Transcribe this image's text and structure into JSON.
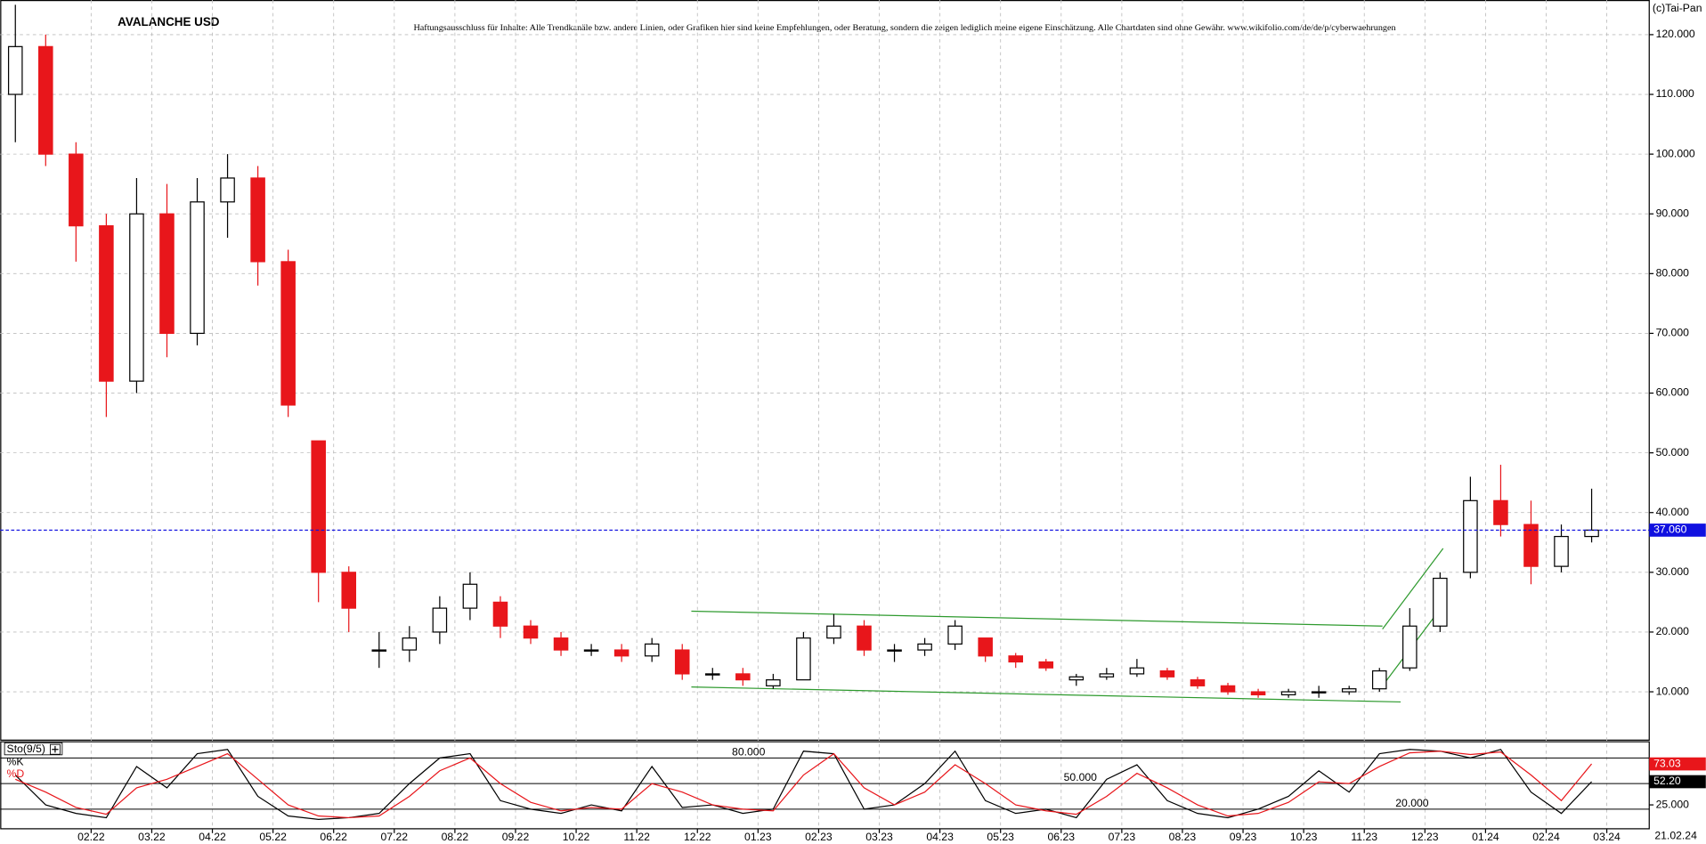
{
  "chart_data": [
    {
      "type": "candlestick",
      "title": "AVALANCHE USD",
      "subtitle": "Haftungsausschluss für Inhalte: Alle Trendkanäle bzw. andere Linien, oder Grafiken hier sind keine Empfehlungen, oder Beratung, sondern die zeigen lediglich meine eigene Einschätzung. Alle Chartdaten sind ohne Gewähr.  www.wikifolio.com/de/de/p/cyberwaehrungen",
      "annotation": "(c)Tai-Pan",
      "date_label": "21.02.24",
      "x": [
        -0.25,
        0.25,
        0.75,
        1.25,
        1.75,
        2.25,
        2.75,
        3.25,
        3.75,
        4.25,
        4.75,
        5.25,
        5.75,
        6.25,
        6.75,
        7.25,
        7.75,
        8.25,
        8.75,
        9.25,
        9.75,
        10.25,
        10.75,
        11.25,
        11.75,
        12.25,
        12.75,
        13.25,
        13.75,
        14.25,
        14.75,
        15.25,
        15.75,
        16.25,
        16.75,
        17.25,
        17.75,
        18.25,
        18.75,
        19.25,
        19.75,
        20.25,
        20.75,
        21.25,
        21.75,
        22.25,
        22.75,
        23.25,
        23.75,
        24.25,
        24.75,
        25.25,
        25.75
      ],
      "open": [
        110,
        118,
        100,
        88,
        62,
        90,
        70,
        92,
        96,
        82,
        52,
        30,
        17,
        17,
        20,
        24,
        25,
        21,
        19,
        17,
        17,
        16,
        17,
        13,
        13,
        11,
        12,
        19,
        21,
        17,
        17,
        18,
        19,
        16,
        15,
        12,
        12.5,
        13,
        13.5,
        12,
        11,
        10,
        9.5,
        10,
        10,
        10.5,
        14,
        21,
        30,
        42,
        38,
        31,
        36
      ],
      "high": [
        125,
        120,
        102,
        90,
        96,
        95,
        96,
        100,
        98,
        84,
        52,
        31,
        20,
        21,
        26,
        30,
        26,
        22,
        20,
        18,
        18,
        19,
        18,
        14,
        14,
        13,
        20,
        23,
        22,
        18,
        19,
        22,
        19,
        16.5,
        15.5,
        13,
        14,
        15.5,
        14,
        12.5,
        11.5,
        10.5,
        10.5,
        11,
        11,
        14,
        24,
        30,
        46,
        48,
        42,
        38,
        44
      ],
      "low": [
        102,
        98,
        82,
        56,
        60,
        66,
        68,
        86,
        78,
        56,
        25,
        20,
        14,
        15,
        18,
        22,
        19,
        18,
        16,
        16,
        15,
        15,
        12,
        12,
        11,
        10.5,
        12,
        18,
        16,
        15,
        16,
        17,
        15,
        14,
        13.5,
        11,
        12,
        12.5,
        12,
        10.5,
        9.5,
        9,
        9,
        9,
        9.5,
        10,
        13.5,
        20,
        29,
        36,
        28,
        30,
        35
      ],
      "close": [
        118,
        100,
        88,
        62,
        90,
        70,
        92,
        96,
        82,
        58,
        30,
        24,
        17,
        19,
        24,
        28,
        21,
        19,
        17,
        17,
        16,
        18,
        13,
        13,
        12,
        12,
        19,
        21,
        17,
        17,
        18,
        21,
        16,
        15,
        14,
        12.5,
        13,
        14,
        12.5,
        11,
        10,
        9.5,
        10,
        10,
        10.5,
        13.5,
        21,
        29,
        42,
        38,
        31,
        36,
        37.06
      ],
      "up_color": "#000000",
      "down_color": "#e8161b",
      "last_price": {
        "value": 37.06,
        "label": "37.060"
      },
      "last_price_color": "#1010e0",
      "trend_lines": [
        {
          "x": [
            10.9,
            22.3
          ],
          "y": [
            23.5,
            21
          ]
        },
        {
          "x": [
            10.9,
            22.6
          ],
          "y": [
            10.8,
            8.3
          ]
        },
        {
          "x": [
            22.3,
            23.3
          ],
          "y": [
            20.5,
            34
          ]
        },
        {
          "x": [
            22.3,
            23.3
          ],
          "y": [
            11,
            24.5
          ]
        }
      ],
      "trend_color": "#2e9a2e",
      "xlim": [
        -0.5,
        26.7
      ],
      "xticks": [
        {
          "value": 1,
          "label": "02.22"
        },
        {
          "value": 2,
          "label": "03.22"
        },
        {
          "value": 3,
          "label": "04.22"
        },
        {
          "value": 4,
          "label": "05.22"
        },
        {
          "value": 5,
          "label": "06.22"
        },
        {
          "value": 6,
          "label": "07.22"
        },
        {
          "value": 7,
          "label": "08.22"
        },
        {
          "value": 8,
          "label": "09.22"
        },
        {
          "value": 9,
          "label": "10.22"
        },
        {
          "value": 10,
          "label": "11.22"
        },
        {
          "value": 11,
          "label": "12.22"
        },
        {
          "value": 12,
          "label": "01.23"
        },
        {
          "value": 13,
          "label": "02.23"
        },
        {
          "value": 14,
          "label": "03.23"
        },
        {
          "value": 15,
          "label": "04.23"
        },
        {
          "value": 16,
          "label": "05.23"
        },
        {
          "value": 17,
          "label": "06.23"
        },
        {
          "value": 18,
          "label": "07.23"
        },
        {
          "value": 19,
          "label": "08.23"
        },
        {
          "value": 20,
          "label": "09.23"
        },
        {
          "value": 21,
          "label": "10.23"
        },
        {
          "value": 22,
          "label": "11.23"
        },
        {
          "value": 23,
          "label": "12.23"
        },
        {
          "value": 24,
          "label": "01.24"
        },
        {
          "value": 25,
          "label": "02.24"
        },
        {
          "value": 26,
          "label": "03.24"
        }
      ],
      "ylim": [
        2,
        125.8
      ],
      "yticks": [
        {
          "value": 10,
          "label": "10.000"
        },
        {
          "value": 20,
          "label": "20.000"
        },
        {
          "value": 30,
          "label": "30.000"
        },
        {
          "value": 40,
          "label": "40.000"
        },
        {
          "value": 50,
          "label": "50.000"
        },
        {
          "value": 60,
          "label": "60.000"
        },
        {
          "value": 70,
          "label": "70.000"
        },
        {
          "value": 80,
          "label": "80.000"
        },
        {
          "value": 90,
          "label": "90.000"
        },
        {
          "value": 100,
          "label": "100.000"
        },
        {
          "value": 110,
          "label": "110.000"
        },
        {
          "value": 120,
          "label": "120.000"
        }
      ],
      "grid": true
    },
    {
      "type": "line",
      "title": "Sto(9/5)",
      "series": [
        {
          "name": "%K",
          "color": "#000000",
          "last_label": "52.20",
          "values": [
            60,
            25,
            15,
            10,
            70,
            45,
            85,
            90,
            35,
            12,
            8,
            10,
            15,
            50,
            80,
            85,
            30,
            20,
            15,
            25,
            18,
            70,
            22,
            25,
            15,
            20,
            88,
            85,
            20,
            25,
            50,
            88,
            30,
            15,
            20,
            10,
            55,
            72,
            30,
            15,
            10,
            20,
            35,
            65,
            40,
            85,
            90,
            88,
            80,
            90,
            40,
            15,
            52.2
          ]
        },
        {
          "name": "%D",
          "color": "#e8161b",
          "last_label": "73.03",
          "values": [
            55,
            40,
            22,
            14,
            45,
            55,
            70,
            85,
            55,
            25,
            12,
            10,
            12,
            35,
            65,
            80,
            50,
            28,
            18,
            22,
            20,
            50,
            40,
            25,
            20,
            18,
            60,
            85,
            45,
            25,
            40,
            72,
            50,
            25,
            18,
            14,
            35,
            62,
            45,
            25,
            12,
            15,
            28,
            52,
            50,
            70,
            86,
            88,
            84,
            87,
            60,
            30,
            73.03
          ]
        }
      ],
      "levels": [
        {
          "value": 80,
          "label": "80.000"
        },
        {
          "value": 50,
          "label": "50.000"
        },
        {
          "value": 20,
          "label": "20.000"
        }
      ],
      "ylim": [
        -3,
        99
      ],
      "yticks": [
        {
          "value": 25,
          "label": "25.000"
        }
      ]
    }
  ]
}
